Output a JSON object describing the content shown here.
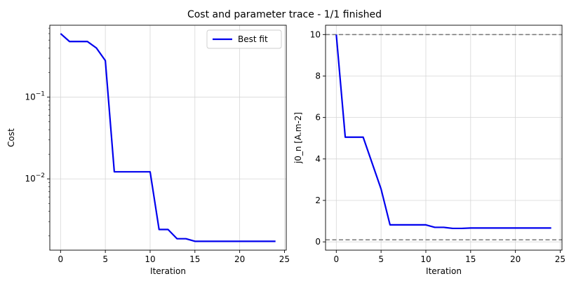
{
  "figure": {
    "title": "Cost and parameter trace - 1/1 finished"
  },
  "chart_data": [
    {
      "type": "line",
      "yscale": "log",
      "xlabel": "Iteration",
      "ylabel": "Cost",
      "xlim": [
        -1.2,
        25.2
      ],
      "ylim": [
        0.00134,
        0.76
      ],
      "xticks": [
        0,
        5,
        10,
        15,
        20,
        25
      ],
      "xtick_labels": [
        "0",
        "5",
        "10",
        "15",
        "20",
        "25"
      ],
      "yticks": [
        0.1,
        0.01
      ],
      "ytick_labels": [
        "10−1",
        "10−2"
      ],
      "grid": true,
      "legend": {
        "position": "top-right",
        "entries": [
          "Best fit"
        ]
      },
      "series": [
        {
          "name": "Best fit",
          "color": "#0000ee",
          "x": [
            0,
            1,
            2,
            3,
            4,
            5,
            6,
            7,
            8,
            9,
            10,
            11,
            12,
            13,
            14,
            15,
            16,
            17,
            18,
            19,
            20,
            21,
            22,
            23,
            24
          ],
          "y": [
            0.6,
            0.48,
            0.48,
            0.48,
            0.4,
            0.28,
            0.0122,
            0.0122,
            0.0122,
            0.0122,
            0.0122,
            0.0024,
            0.0024,
            0.00185,
            0.00185,
            0.00172,
            0.00172,
            0.00172,
            0.00172,
            0.00172,
            0.00172,
            0.00172,
            0.00172,
            0.00172,
            0.00172
          ]
        }
      ]
    },
    {
      "type": "line",
      "yscale": "linear",
      "xlabel": "Iteration",
      "ylabel": "j0_n [A.m-2]",
      "xlim": [
        -1.2,
        25.2
      ],
      "ylim": [
        -0.4,
        10.45
      ],
      "xticks": [
        0,
        5,
        10,
        15,
        20,
        25
      ],
      "xtick_labels": [
        "0",
        "5",
        "10",
        "15",
        "20",
        "25"
      ],
      "yticks": [
        0,
        2,
        4,
        6,
        8,
        10
      ],
      "ytick_labels": [
        "0",
        "2",
        "4",
        "6",
        "8",
        "10"
      ],
      "grid": true,
      "bounds": [
        0.1,
        10
      ],
      "bounds_color": "#777777",
      "series": [
        {
          "name": "j0_n",
          "color": "#0000ee",
          "x": [
            0,
            1,
            2,
            3,
            4,
            5,
            6,
            7,
            8,
            9,
            10,
            11,
            12,
            13,
            14,
            15,
            16,
            17,
            18,
            19,
            20,
            21,
            22,
            23,
            24
          ],
          "y": [
            10,
            5.05,
            5.05,
            5.05,
            3.8,
            2.55,
            0.82,
            0.82,
            0.82,
            0.82,
            0.82,
            0.7,
            0.7,
            0.65,
            0.65,
            0.67,
            0.67,
            0.67,
            0.67,
            0.67,
            0.67,
            0.67,
            0.67,
            0.67,
            0.67
          ]
        }
      ]
    }
  ]
}
